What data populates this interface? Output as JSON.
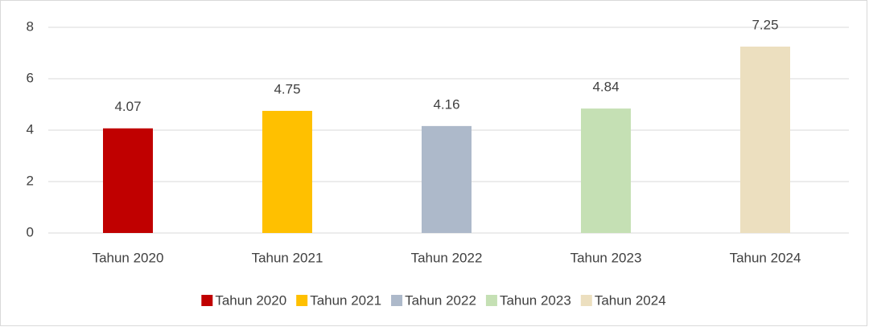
{
  "chart_data": {
    "type": "bar",
    "categories": [
      "Tahun 2020",
      "Tahun 2021",
      "Tahun 2022",
      "Tahun 2023",
      "Tahun 2024"
    ],
    "values": [
      4.07,
      4.75,
      4.16,
      4.84,
      7.25
    ],
    "colors": [
      "#c00000",
      "#ffc000",
      "#adb9ca",
      "#c5e0b4",
      "#ecdfbf"
    ],
    "ylim": [
      0,
      8
    ],
    "yticks": [
      0,
      2,
      4,
      6,
      8
    ],
    "grid": true,
    "legend": "bottom"
  }
}
